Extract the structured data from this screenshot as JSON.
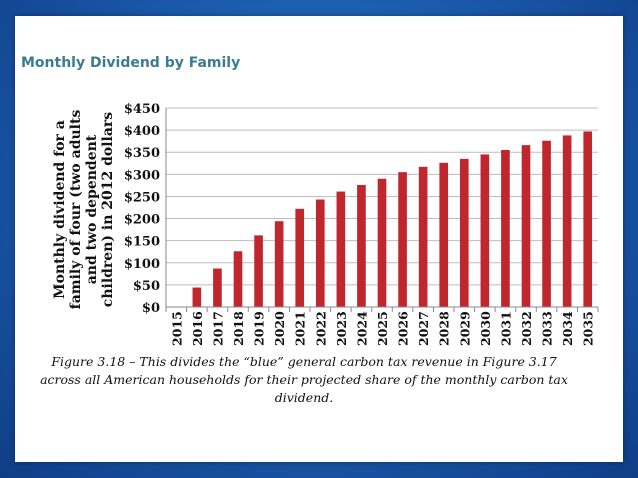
{
  "chart_data": {
    "type": "bar",
    "title": "Monthly Dividend by Family",
    "ylabel": [
      "Monthly dividend for a",
      "family of four (two adults",
      "and two dependent",
      "children) in 2012 dollars"
    ],
    "xlabel": "",
    "categories": [
      "2015",
      "2016",
      "2017",
      "2018",
      "2019",
      "2020",
      "2021",
      "2022",
      "2023",
      "2024",
      "2025",
      "2026",
      "2027",
      "2028",
      "2029",
      "2030",
      "2031",
      "2032",
      "2033",
      "2034",
      "2035"
    ],
    "values": [
      0,
      44,
      87,
      126,
      162,
      194,
      222,
      243,
      261,
      276,
      290,
      305,
      317,
      326,
      335,
      345,
      355,
      366,
      376,
      388,
      397
    ],
    "ylim": [
      0,
      450
    ],
    "yticks": [
      "$0",
      "$50",
      "$100",
      "$150",
      "$200",
      "$250",
      "$300",
      "$350",
      "$400",
      "$450"
    ],
    "ytick_values": [
      0,
      50,
      100,
      150,
      200,
      250,
      300,
      350,
      400,
      450
    ],
    "grid": true,
    "legend": "none",
    "bar_color": "#c0262d"
  },
  "caption": "Figure 3.18 – This divides the “blue” general carbon tax revenue in Figure 3.17 across all American households for their projected share of the monthly carbon tax dividend.",
  "colors": {
    "title": "#3b7c93",
    "background_frame": "#1d5fb2"
  }
}
